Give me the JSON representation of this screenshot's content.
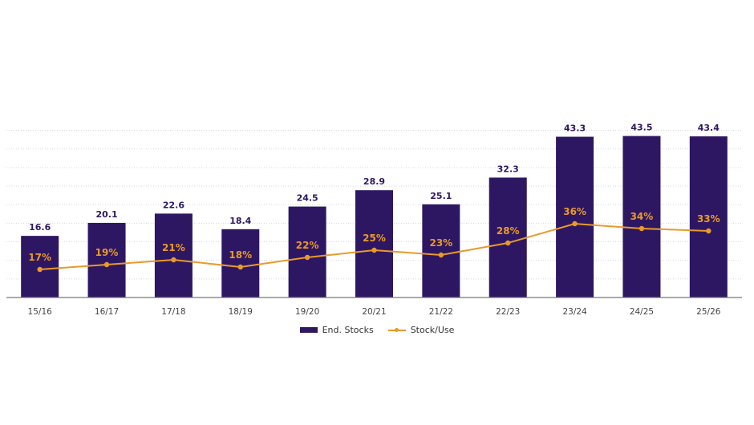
{
  "chart_data": {
    "type": "bar",
    "categories": [
      "15/16",
      "16/17",
      "17/18",
      "18/19",
      "19/20",
      "20/21",
      "21/22",
      "22/23",
      "23/24",
      "24/25",
      "25/26"
    ],
    "series": [
      {
        "name": "End. Stocks",
        "type": "bar",
        "values": [
          16.6,
          20.1,
          22.6,
          18.4,
          24.5,
          28.9,
          25.1,
          32.3,
          43.3,
          43.5,
          43.4
        ],
        "color": "#2e1762"
      },
      {
        "name": "Stock/Use",
        "type": "line",
        "values": [
          17,
          19,
          21,
          18,
          22,
          25,
          23,
          28,
          36,
          34,
          33
        ],
        "unit": "%",
        "color": "#e99a2a"
      }
    ],
    "bar_labels": [
      "16.6",
      "20.1",
      "22.6",
      "18.4",
      "24.5",
      "28.9",
      "25.1",
      "32.3",
      "43.3",
      "43.5",
      "43.4"
    ],
    "line_labels": [
      "17%",
      "19%",
      "21%",
      "18%",
      "22%",
      "25%",
      "23%",
      "28%",
      "36%",
      "34%",
      "33%"
    ],
    "ylim": [
      0,
      50
    ],
    "grid": true,
    "legend_position": "bottom"
  }
}
